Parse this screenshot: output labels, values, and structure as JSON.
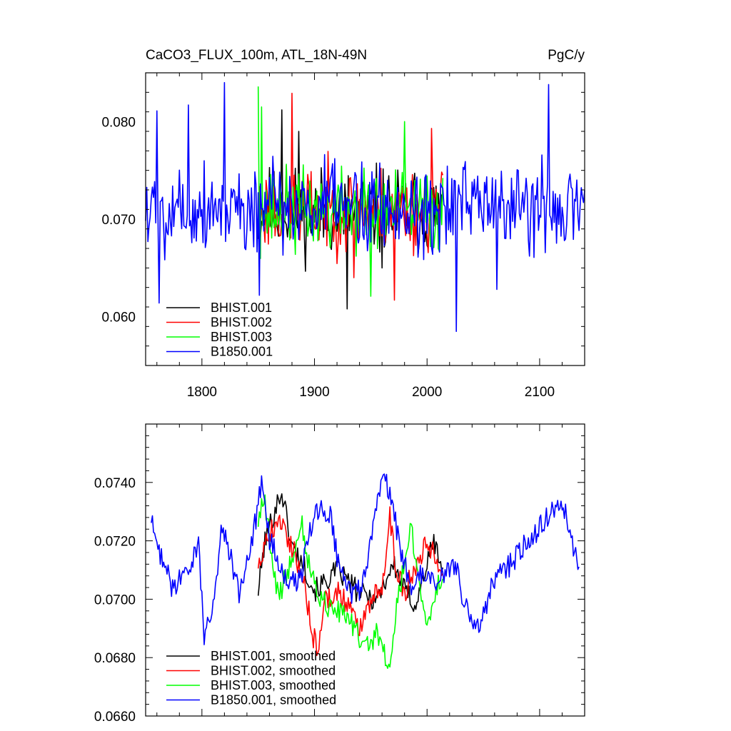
{
  "chart_data": [
    {
      "type": "line",
      "title": "CaCO3_FLUX_100m, ATL_18N-49N",
      "units": "PgC/y",
      "xlim": [
        1750,
        2140
      ],
      "ylim": [
        0.055,
        0.085
      ],
      "xticks": [
        1800,
        1900,
        2000,
        2100
      ],
      "xtick_labels": [
        "1800",
        "1900",
        "2000",
        "2100"
      ],
      "yticks": [
        0.06,
        0.07,
        0.08
      ],
      "ytick_labels": [
        "0.060",
        "0.070",
        "0.080"
      ],
      "series": [
        {
          "name": "BHIST.001",
          "color": "#000000",
          "start": 1850,
          "end": 2014,
          "mean": 0.0708,
          "amp": 0.0042,
          "seed": 11,
          "extremes": [
            [
              1871,
              0.0812
            ],
            [
              1929,
              0.0608
            ],
            [
              1886,
              0.079
            ],
            [
              1960,
              0.065
            ]
          ]
        },
        {
          "name": "BHIST.002",
          "color": "#ff0000",
          "start": 1850,
          "end": 2014,
          "mean": 0.071,
          "amp": 0.004,
          "seed": 23,
          "extremes": [
            [
              1880,
              0.0829
            ],
            [
              1971,
              0.0617
            ],
            [
              2004,
              0.0793
            ],
            [
              1935,
              0.064
            ]
          ]
        },
        {
          "name": "BHIST.003",
          "color": "#00ff00",
          "start": 1850,
          "end": 2014,
          "mean": 0.0708,
          "amp": 0.004,
          "seed": 37,
          "extremes": [
            [
              1850,
              0.0836
            ],
            [
              1853,
              0.0815
            ],
            [
              1950,
              0.0621
            ],
            [
              1980,
              0.08
            ]
          ]
        },
        {
          "name": "B1850.001",
          "color": "#0000ff",
          "start": 1750,
          "end": 2140,
          "mean": 0.0712,
          "amp": 0.0045,
          "seed": 5,
          "extremes": [
            [
              1820,
              0.084
            ],
            [
              2108,
              0.0838
            ],
            [
              2026,
              0.0585
            ],
            [
              1762,
              0.0614
            ],
            [
              1760,
              0.0811
            ],
            [
              1851,
              0.0622
            ],
            [
              1788,
              0.0817
            ],
            [
              2062,
              0.0628
            ]
          ]
        }
      ]
    },
    {
      "type": "line",
      "title": "",
      "xlim": [
        1750,
        2140
      ],
      "ylim": [
        0.066,
        0.076
      ],
      "xticks": [
        1800,
        1900,
        2000,
        2100
      ],
      "yticks": [
        0.066,
        0.068,
        0.07,
        0.072,
        0.074
      ],
      "ytick_labels": [
        "0.0660",
        "0.0680",
        "0.0700",
        "0.0720",
        "0.0740"
      ],
      "series": [
        {
          "name": "BHIST.001, smoothed",
          "color": "#000000",
          "start": 1850,
          "end": 2014,
          "noise": 0.0004,
          "seed": 101,
          "anchors": [
            [
              1850,
              0.0703
            ],
            [
              1856,
              0.072
            ],
            [
              1866,
              0.0732
            ],
            [
              1871,
              0.0737
            ],
            [
              1880,
              0.0718
            ],
            [
              1890,
              0.0712
            ],
            [
              1900,
              0.0703
            ],
            [
              1910,
              0.0706
            ],
            [
              1920,
              0.071
            ],
            [
              1930,
              0.0706
            ],
            [
              1940,
              0.0702
            ],
            [
              1955,
              0.07
            ],
            [
              1970,
              0.0712
            ],
            [
              1980,
              0.0703
            ],
            [
              1990,
              0.0698
            ],
            [
              2000,
              0.0712
            ],
            [
              2006,
              0.072
            ],
            [
              2014,
              0.071
            ]
          ]
        },
        {
          "name": "BHIST.002, smoothed",
          "color": "#ff0000",
          "start": 1850,
          "end": 2014,
          "noise": 0.0004,
          "seed": 202,
          "anchors": [
            [
              1850,
              0.0712
            ],
            [
              1858,
              0.0722
            ],
            [
              1870,
              0.0727
            ],
            [
              1880,
              0.0718
            ],
            [
              1890,
              0.0708
            ],
            [
              1898,
              0.0688
            ],
            [
              1903,
              0.0683
            ],
            [
              1910,
              0.07
            ],
            [
              1920,
              0.0703
            ],
            [
              1930,
              0.0698
            ],
            [
              1940,
              0.069
            ],
            [
              1950,
              0.07
            ],
            [
              1960,
              0.0705
            ],
            [
              1967,
              0.0728
            ],
            [
              1972,
              0.0712
            ],
            [
              1980,
              0.0702
            ],
            [
              1990,
              0.0712
            ],
            [
              2000,
              0.072
            ],
            [
              2014,
              0.071
            ]
          ]
        },
        {
          "name": "BHIST.003, smoothed",
          "color": "#00ff00",
          "start": 1850,
          "end": 2014,
          "noise": 0.0004,
          "seed": 303,
          "anchors": [
            [
              1850,
              0.0726
            ],
            [
              1855,
              0.0735
            ],
            [
              1862,
              0.0715
            ],
            [
              1868,
              0.07
            ],
            [
              1878,
              0.0712
            ],
            [
              1888,
              0.0727
            ],
            [
              1895,
              0.0712
            ],
            [
              1905,
              0.07
            ],
            [
              1915,
              0.0697
            ],
            [
              1925,
              0.0695
            ],
            [
              1935,
              0.069
            ],
            [
              1945,
              0.0683
            ],
            [
              1955,
              0.0688
            ],
            [
              1962,
              0.0682
            ],
            [
              1967,
              0.0676
            ],
            [
              1972,
              0.0695
            ],
            [
              1980,
              0.0712
            ],
            [
              1985,
              0.0727
            ],
            [
              1992,
              0.0706
            ],
            [
              2000,
              0.0692
            ],
            [
              2006,
              0.07
            ],
            [
              2014,
              0.071
            ]
          ]
        },
        {
          "name": "B1850.001, smoothed",
          "color": "#0000ff",
          "start": 1755,
          "end": 2135,
          "noise": 0.0004,
          "seed": 404,
          "anchors": [
            [
              1755,
              0.0727
            ],
            [
              1760,
              0.0718
            ],
            [
              1768,
              0.0712
            ],
            [
              1775,
              0.0702
            ],
            [
              1780,
              0.0708
            ],
            [
              1790,
              0.071
            ],
            [
              1797,
              0.072
            ],
            [
              1802,
              0.0687
            ],
            [
              1810,
              0.0698
            ],
            [
              1818,
              0.0725
            ],
            [
              1825,
              0.0715
            ],
            [
              1833,
              0.0702
            ],
            [
              1840,
              0.0712
            ],
            [
              1848,
              0.0728
            ],
            [
              1853,
              0.074
            ],
            [
              1860,
              0.072
            ],
            [
              1870,
              0.0712
            ],
            [
              1878,
              0.0705
            ],
            [
              1888,
              0.0707
            ],
            [
              1895,
              0.0722
            ],
            [
              1905,
              0.0732
            ],
            [
              1915,
              0.0728
            ],
            [
              1920,
              0.0715
            ],
            [
              1928,
              0.0708
            ],
            [
              1935,
              0.07
            ],
            [
              1942,
              0.0705
            ],
            [
              1950,
              0.072
            ],
            [
              1957,
              0.0735
            ],
            [
              1963,
              0.0742
            ],
            [
              1970,
              0.073
            ],
            [
              1978,
              0.0715
            ],
            [
              1985,
              0.0705
            ],
            [
              1995,
              0.0708
            ],
            [
              2005,
              0.0705
            ],
            [
              2015,
              0.0708
            ],
            [
              2025,
              0.0712
            ],
            [
              2032,
              0.07
            ],
            [
              2040,
              0.0692
            ],
            [
              2047,
              0.069
            ],
            [
              2055,
              0.0702
            ],
            [
              2065,
              0.071
            ],
            [
              2075,
              0.0712
            ],
            [
              2085,
              0.0718
            ],
            [
              2095,
              0.0722
            ],
            [
              2105,
              0.0728
            ],
            [
              2115,
              0.0732
            ],
            [
              2122,
              0.073
            ],
            [
              2128,
              0.0722
            ],
            [
              2135,
              0.0708
            ]
          ]
        }
      ]
    }
  ]
}
